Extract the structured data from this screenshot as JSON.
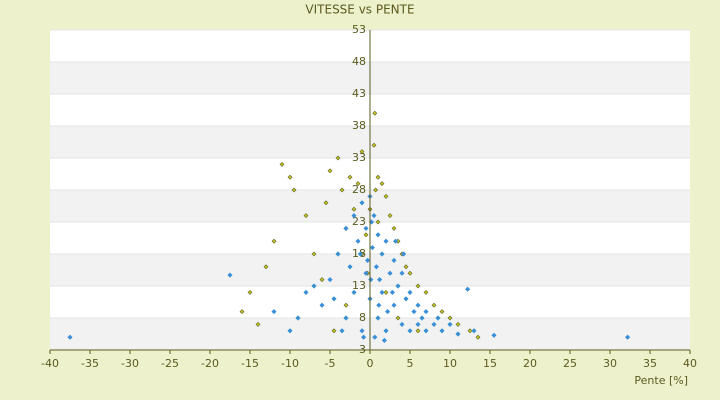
{
  "chart_data": {
    "type": "scatter",
    "title": "VITESSE vs PENTE",
    "x_label": "Pente [%]",
    "xlim": [
      -40,
      40
    ],
    "xticks": [
      -40,
      -35,
      -30,
      -25,
      -20,
      -15,
      -10,
      -5,
      0,
      5,
      10,
      15,
      20,
      25,
      30,
      35,
      40
    ],
    "ylim": [
      3,
      53
    ],
    "yticks": [
      53,
      48,
      43,
      38,
      33,
      28,
      23,
      18,
      13,
      8,
      3
    ],
    "grid": true,
    "series": [
      {
        "color": "#c8c81e",
        "x": [
          -11,
          -10,
          -9.5,
          -13,
          -15,
          -14,
          -12,
          -8,
          -7,
          -6,
          -5.5,
          -5,
          -4,
          -3.5,
          -3,
          -2.5,
          -2,
          -1.5,
          -1,
          -0.5,
          0,
          0.5,
          0.7,
          1,
          1.5,
          2,
          2.5,
          3,
          3.5,
          4,
          4.5,
          5,
          6,
          7,
          8,
          9,
          10,
          11,
          12.5,
          13.5,
          -3,
          -1,
          1,
          2,
          0.6,
          -16,
          -4.5,
          3.5,
          6,
          -0.3
        ],
        "values": [
          32,
          30,
          28,
          16,
          12,
          7,
          20,
          24,
          18,
          14,
          26,
          31,
          33,
          28,
          22,
          30,
          25,
          29,
          34,
          21,
          25,
          35,
          28,
          30,
          29,
          27,
          24,
          22,
          20,
          18,
          16,
          15,
          13,
          12,
          10,
          9,
          8,
          7,
          6,
          5,
          10,
          18,
          23,
          12,
          40,
          9,
          6,
          8,
          6,
          15
        ]
      },
      {
        "color": "#3a8fd8",
        "x": [
          -37.5,
          32.2,
          -17.5,
          12.2,
          15.5,
          -12,
          -10,
          -8,
          -6,
          -5,
          -4,
          -3,
          -3,
          -2,
          -2,
          -1.5,
          -1,
          -1,
          -0.5,
          -0.5,
          0,
          0,
          0.3,
          0.5,
          0.8,
          1,
          1,
          1.5,
          1.5,
          2,
          2,
          2.5,
          3,
          3,
          3.5,
          4,
          4,
          4.5,
          5,
          5,
          5.5,
          6,
          6,
          6.5,
          7,
          7,
          8,
          8.5,
          9,
          10,
          11,
          -2.5,
          -1.2,
          0.2,
          1.2,
          2.2,
          3.2,
          -4.5,
          -7,
          -9,
          0.6,
          1.8,
          -0.8,
          2.8,
          4.2,
          -3.5,
          13,
          0.1,
          -0.3,
          1.1
        ],
        "values": [
          5,
          5,
          14.7,
          12.5,
          5.3,
          9,
          6,
          12,
          10,
          14,
          18,
          22,
          8,
          24,
          12,
          20,
          26,
          6,
          22,
          15,
          27,
          11,
          19,
          24,
          16,
          21,
          8,
          18,
          12,
          20,
          6,
          15,
          17,
          10,
          13,
          15,
          7,
          11,
          12,
          6,
          9,
          10,
          7,
          8,
          9,
          6,
          7,
          8,
          6,
          7,
          5.5,
          16,
          18,
          23,
          14,
          9,
          20,
          11,
          13,
          8,
          5,
          4.5,
          5,
          12,
          18,
          6,
          6,
          14,
          17,
          10
        ]
      }
    ]
  }
}
